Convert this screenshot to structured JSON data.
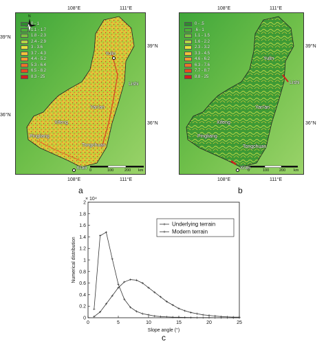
{
  "panel_a": {
    "letter": "a",
    "coords": {
      "lon_left": "108°E",
      "lon_right": "111°E",
      "lat_top": "39°N",
      "lat_mid": "36°N"
    },
    "legend": [
      {
        "label": "0 - 1",
        "color": "#2e8b2e"
      },
      {
        "label": "1.1 - 1.7",
        "color": "#4caf37"
      },
      {
        "label": "1.8 - 2.3",
        "color": "#7cc142"
      },
      {
        "label": "2.4 - 2.9",
        "color": "#b3d445"
      },
      {
        "label": "3 - 3.6",
        "color": "#e6e23c"
      },
      {
        "label": "3.7 - 4.3",
        "color": "#f3c13a"
      },
      {
        "label": "4.4 - 5.2",
        "color": "#f29a31"
      },
      {
        "label": "5.3 - 6.4",
        "color": "#ee7229"
      },
      {
        "label": "6.5 - 8.2",
        "color": "#e64a22"
      },
      {
        "label": "8.3 - 25",
        "color": "#d4201c"
      }
    ],
    "cities": [
      "Yulin",
      "Lishi",
      "Yan'an",
      "Xifeng",
      "Pingliang",
      "Tongchuan",
      "Xi'an"
    ],
    "scale": {
      "labels": [
        "0",
        "100",
        "200"
      ],
      "unit": "km"
    }
  },
  "panel_b": {
    "letter": "b",
    "coords": {
      "lon_left": "108°E",
      "lon_right": "111°E",
      "lat_top": "39°N",
      "lat_mid": "36°N"
    },
    "legend": [
      {
        "label": "0 - .5",
        "color": "#2e8b2e"
      },
      {
        "label": ".6 - 1",
        "color": "#4caf37"
      },
      {
        "label": "1.1 - 1.5",
        "color": "#7cc142"
      },
      {
        "label": "1.6 - 2.2",
        "color": "#b3d445"
      },
      {
        "label": "2.3 - 3.2",
        "color": "#e6e23c"
      },
      {
        "label": "3.3 - 4.5",
        "color": "#f3c13a"
      },
      {
        "label": "4.6 - 6.2",
        "color": "#f29a31"
      },
      {
        "label": "6.3 - 7.6",
        "color": "#ee7229"
      },
      {
        "label": "7.7 - 8.7",
        "color": "#e64a22"
      },
      {
        "label": "8.8 - 25",
        "color": "#d4201c"
      }
    ],
    "cities": [
      "Yulin",
      "Lishi",
      "Yan'an",
      "Xifeng",
      "Pingliang",
      "Tongchuan",
      "Xi'an"
    ],
    "scale": {
      "labels": [
        "0",
        "100",
        "200"
      ],
      "unit": "km"
    }
  },
  "chart_data": {
    "type": "line",
    "panel_letter": "c",
    "xlabel": "Slope angle (°)",
    "ylabel": "Numerical distribution",
    "y_multiplier": "× 10⁴",
    "xlim": [
      0,
      25
    ],
    "ylim": [
      0,
      2
    ],
    "xticks": [
      0,
      5,
      10,
      15,
      20,
      25
    ],
    "yticks": [
      0,
      0.2,
      0.4,
      0.6,
      0.8,
      1,
      1.2,
      1.4,
      1.6,
      1.8,
      2
    ],
    "ytick_labels": [
      "0",
      "0.2",
      "0.4",
      "0.6",
      "0.8",
      "1",
      "1.2",
      "1.4",
      "1.6",
      "1.8",
      "2"
    ],
    "legend_position": "top-right",
    "series": [
      {
        "name": "Underlying terrain",
        "x": [
          1,
          2,
          3,
          4,
          5,
          6,
          7,
          8,
          9,
          10,
          11,
          12,
          13,
          14,
          15,
          16,
          17,
          18,
          19,
          20,
          21,
          22,
          23,
          24,
          25
        ],
        "y": [
          0.15,
          1.42,
          1.48,
          1.02,
          0.58,
          0.32,
          0.18,
          0.11,
          0.07,
          0.05,
          0.03,
          0.02,
          0.015,
          0.01,
          0.008,
          0.006,
          0.004,
          0.003,
          0.002,
          0.002,
          0.001,
          0.001,
          0.001,
          0.0,
          0.0
        ]
      },
      {
        "name": "Modern terrain",
        "x": [
          1,
          2,
          3,
          4,
          5,
          6,
          7,
          8,
          9,
          10,
          11,
          12,
          13,
          14,
          15,
          16,
          17,
          18,
          19,
          20,
          21,
          22,
          23,
          24,
          25
        ],
        "y": [
          0.02,
          0.1,
          0.24,
          0.38,
          0.52,
          0.62,
          0.66,
          0.65,
          0.6,
          0.52,
          0.44,
          0.36,
          0.28,
          0.22,
          0.16,
          0.12,
          0.09,
          0.07,
          0.05,
          0.04,
          0.03,
          0.02,
          0.015,
          0.01,
          0.01
        ]
      }
    ]
  }
}
